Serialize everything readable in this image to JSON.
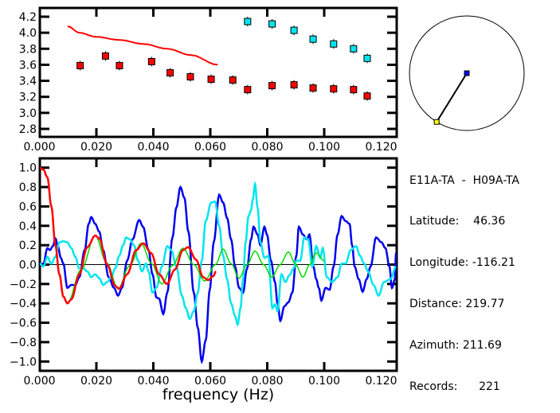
{
  "colors": {
    "red": "#ff0000",
    "cyan": "#00e5ee",
    "blue": "#0000ee",
    "green": "#00dd00",
    "axis": "#000000",
    "station1": "#0000ee",
    "station2": "#ffff00"
  },
  "info": {
    "pair": "E11A-TA  -  H09A-TA",
    "rows": [
      {
        "label": "Latitude:",
        "value": "46.36",
        "pad": "    "
      },
      {
        "label": "Longitude:",
        "value": "-116.21",
        "pad": " "
      },
      {
        "label": "Distance:",
        "value": "219.77",
        "pad": " "
      },
      {
        "label": "Azimuth:",
        "value": "211.69",
        "pad": " "
      },
      {
        "label": "Records:",
        "value": "221",
        "pad": "      "
      }
    ]
  },
  "map": {
    "azimuth_deg": 211.69
  },
  "chart_data": [
    {
      "type": "scatter",
      "title": "",
      "xlabel": "",
      "ylabel": "",
      "xlim": [
        0,
        0.12
      ],
      "ylim": [
        2.7,
        4.3
      ],
      "xticks": [
        "0.000",
        "0.020",
        "0.040",
        "0.060",
        "0.080",
        "0.100",
        "0.120"
      ],
      "yticks": [
        "2.8",
        "3.0",
        "3.2",
        "3.4",
        "3.6",
        "3.8",
        "4.0",
        "4.2"
      ],
      "series": [
        {
          "name": "red-line",
          "kind": "line",
          "color": "red",
          "x": [
            0.0099,
            0.0141,
            0.0197,
            0.0281,
            0.0365,
            0.0449,
            0.0533,
            0.0626
          ],
          "y": [
            4.08,
            4.0,
            3.95,
            3.91,
            3.86,
            3.8,
            3.72,
            3.6
          ]
        },
        {
          "name": "red-squares",
          "kind": "points",
          "color": "red",
          "x": [
            0.0143,
            0.0232,
            0.0281,
            0.0394,
            0.0459,
            0.053,
            0.0603,
            0.0679,
            0.0731,
            0.0817,
            0.0894,
            0.0961,
            0.1033,
            0.1103,
            0.1151
          ],
          "y": [
            3.59,
            3.71,
            3.59,
            3.64,
            3.5,
            3.45,
            3.42,
            3.41,
            3.29,
            3.34,
            3.35,
            3.31,
            3.3,
            3.29,
            3.21
          ]
        },
        {
          "name": "cyan-squares",
          "kind": "points",
          "color": "cyan",
          "x": [
            0.0731,
            0.0817,
            0.0894,
            0.0961,
            0.1033,
            0.1103,
            0.1151
          ],
          "y": [
            4.14,
            4.11,
            4.03,
            3.92,
            3.86,
            3.8,
            3.68
          ]
        }
      ]
    },
    {
      "type": "line",
      "title": "",
      "xlabel": "frequency (Hz)",
      "ylabel": "",
      "xlim": [
        0,
        0.1255
      ],
      "ylim": [
        -1.0,
        1.0
      ],
      "xticks": [
        "0.000",
        "0.020",
        "0.040",
        "0.060",
        "0.080",
        "0.100",
        "0.120"
      ],
      "yticks": [
        "-1.0",
        "-0.8",
        "-0.6",
        "-0.4",
        "-0.2",
        "0.0",
        "0.2",
        "0.4",
        "0.6",
        "0.8",
        "1.0"
      ],
      "series": [
        {
          "name": "blue",
          "color": "blue",
          "x": [
            0,
            0.0014,
            0.0028,
            0.0037,
            0.0047,
            0.0056,
            0.0065,
            0.0075,
            0.0084,
            0.0098,
            0.0112,
            0.0126,
            0.014,
            0.0159,
            0.0173,
            0.0182,
            0.0196,
            0.021,
            0.0224,
            0.0243,
            0.0262,
            0.0276,
            0.029,
            0.0308,
            0.0327,
            0.035,
            0.0364,
            0.0383,
            0.0397,
            0.0411,
            0.042,
            0.0435,
            0.0449,
            0.0467,
            0.0481,
            0.0495,
            0.0509,
            0.0523,
            0.0542,
            0.0556,
            0.057,
            0.0584,
            0.0598,
            0.0612,
            0.0631,
            0.0645,
            0.0659,
            0.0673,
            0.0687,
            0.0701,
            0.0715,
            0.0729,
            0.0743,
            0.0752,
            0.0766,
            0.0776,
            0.079,
            0.0799,
            0.0813,
            0.0827,
            0.0836,
            0.0846,
            0.086,
            0.0874,
            0.0888,
            0.0902,
            0.0911,
            0.0925,
            0.0939,
            0.0948,
            0.0962,
            0.0972,
            0.0981,
            0.099,
            0.1005,
            0.1019,
            0.1033,
            0.1047,
            0.1061,
            0.1075,
            0.1089,
            0.1098,
            0.1107,
            0.1121,
            0.1135,
            0.1149,
            0.1163,
            0.1182,
            0.1201,
            0.1215,
            0.1229,
            0.1238,
            0.1248,
            0.1252
          ],
          "y": [
            0.0,
            0.01,
            0.17,
            0.15,
            0.19,
            0.27,
            0.19,
            0.07,
            0.01,
            -0.24,
            -0.21,
            -0.21,
            -0.13,
            0.15,
            0.42,
            0.49,
            0.42,
            0.34,
            0.15,
            -0.13,
            -0.24,
            -0.32,
            -0.24,
            0.04,
            0.26,
            0.46,
            0.39,
            0.15,
            -0.1,
            -0.34,
            -0.35,
            -0.51,
            -0.29,
            0.28,
            0.59,
            0.8,
            0.69,
            0.34,
            -0.29,
            -0.65,
            -1.0,
            -0.78,
            -0.26,
            0.23,
            0.72,
            0.64,
            0.48,
            0.26,
            -0.02,
            -0.24,
            -0.29,
            -0.04,
            0.26,
            0.39,
            0.31,
            0.2,
            0.39,
            0.31,
            0.04,
            -0.18,
            -0.4,
            -0.58,
            -0.43,
            -0.39,
            -0.29,
            0.09,
            0.39,
            0.31,
            0.26,
            0.31,
            -0.02,
            -0.15,
            -0.24,
            -0.37,
            -0.24,
            -0.26,
            -0.02,
            0.31,
            0.5,
            0.45,
            0.42,
            0.2,
            -0.02,
            -0.15,
            -0.28,
            -0.15,
            -0.02,
            0.28,
            0.23,
            0.17,
            -0.02,
            -0.24,
            -0.15,
            0.12
          ]
        },
        {
          "name": "cyan",
          "color": "cyan",
          "x": [
            0,
            0.0014,
            0.0028,
            0.0042,
            0.0056,
            0.007,
            0.0084,
            0.0098,
            0.0112,
            0.0126,
            0.014,
            0.0154,
            0.0168,
            0.0182,
            0.0196,
            0.021,
            0.0224,
            0.0238,
            0.0252,
            0.0266,
            0.028,
            0.0294,
            0.0304,
            0.0318,
            0.0332,
            0.0346,
            0.036,
            0.0374,
            0.0383,
            0.0397,
            0.0411,
            0.043,
            0.0449,
            0.0463,
            0.0481,
            0.05,
            0.0514,
            0.0528,
            0.0542,
            0.0556,
            0.057,
            0.0584,
            0.0603,
            0.0617,
            0.0631,
            0.0645,
            0.0659,
            0.0673,
            0.0687,
            0.0696,
            0.0706,
            0.0715,
            0.0724,
            0.0734,
            0.0743,
            0.0749,
            0.0757,
            0.0766,
            0.0776,
            0.079,
            0.0804,
            0.0818,
            0.0827,
            0.0836,
            0.085,
            0.0864,
            0.0878,
            0.0892,
            0.0902,
            0.0916,
            0.093,
            0.0944,
            0.0958,
            0.0972,
            0.0986,
            0.0995,
            0.1009,
            0.1028,
            0.1047,
            0.1061,
            0.1075,
            0.1093,
            0.1112,
            0.1126,
            0.114,
            0.1154,
            0.1173,
            0.1191,
            0.121,
            0.1233,
            0.1252
          ],
          "y": [
            0.01,
            -0.02,
            0.08,
            0.01,
            0.08,
            0.23,
            0.24,
            0.23,
            0.17,
            0.08,
            -0.04,
            -0.04,
            -0.07,
            -0.13,
            -0.1,
            -0.14,
            -0.21,
            -0.18,
            -0.13,
            -0.04,
            0.09,
            0.2,
            0.28,
            0.26,
            0.2,
            0.04,
            -0.07,
            0.01,
            -0.07,
            -0.29,
            -0.24,
            -0.02,
            0.19,
            0.15,
            -0.02,
            -0.32,
            -0.45,
            -0.56,
            -0.48,
            -0.29,
            0.04,
            0.45,
            0.64,
            0.65,
            0.4,
            0.09,
            -0.15,
            -0.4,
            -0.53,
            -0.62,
            -0.45,
            -0.15,
            0.23,
            0.5,
            0.56,
            0.67,
            0.83,
            0.59,
            0.23,
            0.07,
            0.09,
            -0.45,
            -0.41,
            -0.48,
            -0.1,
            -0.18,
            -0.11,
            -0.04,
            0.04,
            0.04,
            0.28,
            0.26,
            -0.02,
            0.19,
            0.07,
            0.17,
            -0.13,
            -0.18,
            -0.13,
            0.01,
            0.01,
            0.15,
            0.19,
            0.09,
            0.01,
            -0.07,
            -0.21,
            -0.32,
            -0.18,
            -0.15,
            -0.02
          ]
        },
        {
          "name": "green",
          "color": "green",
          "x": [
            0.0093,
            0.0098,
            0.0147,
            0.0196,
            0.0236,
            0.0276,
            0.0317,
            0.0357,
            0.0394,
            0.043,
            0.0467,
            0.0504,
            0.0542,
            0.058,
            0.0618,
            0.0645,
            0.0673,
            0.0701,
            0.0729,
            0.0757,
            0.0787,
            0.0816,
            0.0845,
            0.0874,
            0.09,
            0.0925,
            0.0949,
            0.0972,
            0.1
          ],
          "y": [
            -0.37,
            -0.4,
            -0.05,
            0.3,
            0.02,
            -0.25,
            -0.01,
            0.22,
            0.01,
            -0.2,
            -0.01,
            0.17,
            0.0,
            -0.17,
            0.0,
            0.16,
            0.01,
            -0.14,
            0.0,
            0.14,
            0.0,
            -0.13,
            0.0,
            0.13,
            0.0,
            -0.13,
            0.0,
            0.12,
            0.04
          ]
        },
        {
          "name": "red",
          "color": "red",
          "x": [
            0,
            0.0014,
            0.0028,
            0.0042,
            0.0056,
            0.007,
            0.0084,
            0.0098,
            0.0112,
            0.014,
            0.0168,
            0.0196,
            0.021,
            0.0238,
            0.0266,
            0.028,
            0.0308,
            0.034,
            0.0364,
            0.0392,
            0.042,
            0.0448,
            0.0476,
            0.0504,
            0.0522,
            0.055,
            0.0575,
            0.0592,
            0.061,
            0.062
          ],
          "y": [
            1.0,
            0.98,
            0.9,
            0.6,
            0.2,
            -0.1,
            -0.33,
            -0.4,
            -0.36,
            -0.1,
            0.18,
            0.3,
            0.27,
            0.0,
            -0.22,
            -0.25,
            -0.1,
            0.15,
            0.22,
            0.12,
            -0.1,
            -0.2,
            -0.05,
            0.15,
            0.18,
            0.05,
            -0.13,
            -0.16,
            -0.12,
            -0.07
          ]
        }
      ]
    }
  ]
}
